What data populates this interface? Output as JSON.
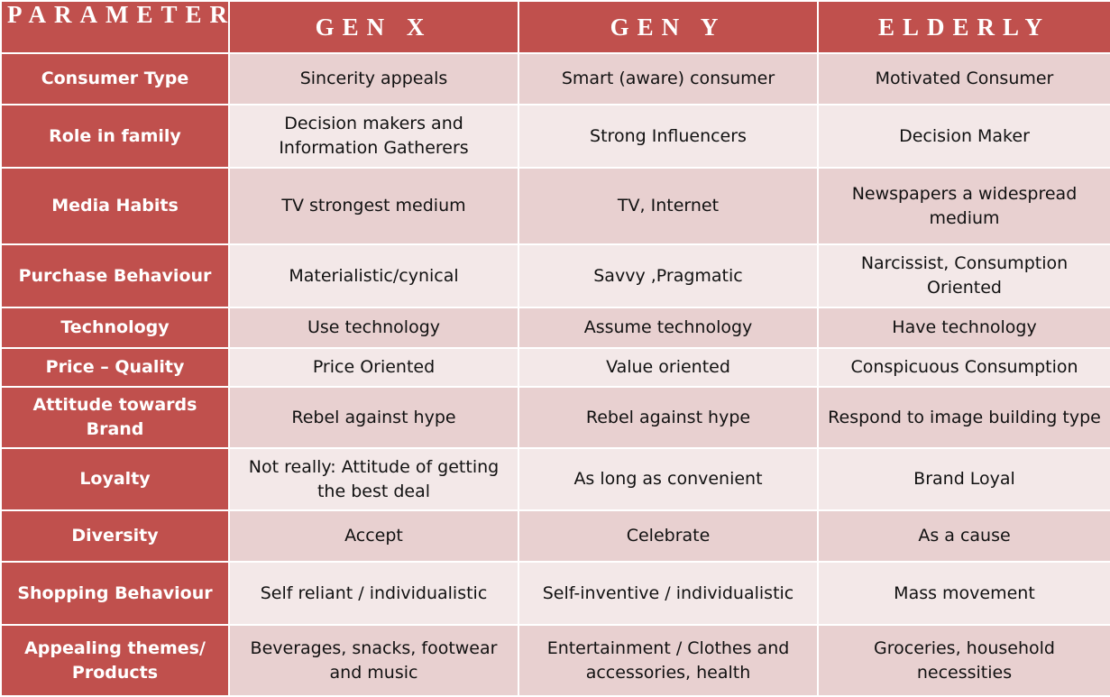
{
  "headers": [
    "PARAMETER",
    "GEN X",
    "GEN Y",
    "ELDERLY"
  ],
  "rows": [
    {
      "parameter": "Consumer Type",
      "gen_x": "Sincerity appeals",
      "gen_y": "Smart (aware) consumer",
      "elderly": "Motivated Consumer"
    },
    {
      "parameter": "Role in family",
      "gen_x": "Decision makers and Information Gatherers",
      "gen_y": "Strong Influencers",
      "elderly": "Decision Maker"
    },
    {
      "parameter": "Media Habits",
      "gen_x": "TV  strongest medium",
      "gen_y": "TV, Internet",
      "elderly": "Newspapers a widespread medium"
    },
    {
      "parameter": "Purchase Behaviour",
      "gen_x": "Materialistic/cynical",
      "gen_y": "Savvy ,Pragmatic",
      "elderly": "Narcissist, Consumption Oriented"
    },
    {
      "parameter": "Technology",
      "gen_x": "Use technology",
      "gen_y": "Assume technology",
      "elderly": "Have technology"
    },
    {
      "parameter": "Price – Quality",
      "gen_x": "Price Oriented",
      "gen_y": "Value oriented",
      "elderly": "Conspicuous Consumption"
    },
    {
      "parameter": "Attitude towards Brand",
      "gen_x": "Rebel against hype",
      "gen_y": "Rebel against hype",
      "elderly": "Respond to image building type"
    },
    {
      "parameter": "Loyalty",
      "gen_x": "Not really: Attitude of getting the best deal",
      "gen_y": "As long as convenient",
      "elderly": "Brand Loyal"
    },
    {
      "parameter": "Diversity",
      "gen_x": "Accept",
      "gen_y": "Celebrate",
      "elderly": "As a cause"
    },
    {
      "parameter": "Shopping Behaviour",
      "gen_x": "Self reliant / individualistic",
      "gen_y": "Self-inventive / individualistic",
      "elderly": "Mass movement"
    },
    {
      "parameter": "Appealing themes/ Products",
      "gen_x": "Beverages, snacks, footwear and music",
      "gen_y": "Entertainment / Clothes and accessories, health",
      "elderly": "Groceries, household necessities"
    }
  ],
  "colors": {
    "header": "#c0504d",
    "row_dark": "#e8d0d0",
    "row_light": "#f3e8e8"
  }
}
